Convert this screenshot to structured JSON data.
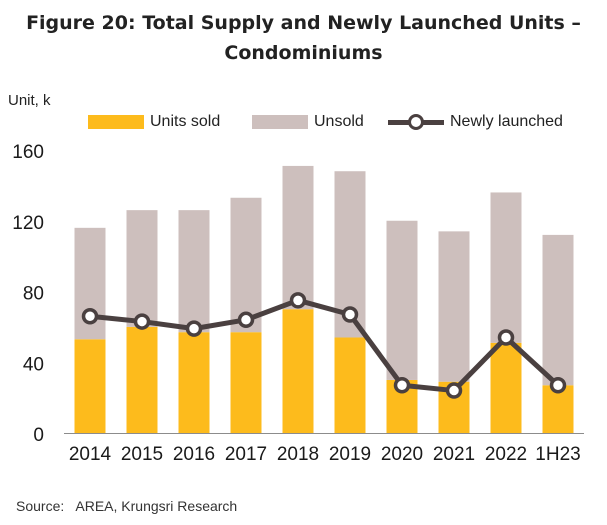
{
  "title_line1": "Figure 20: Total Supply and Newly Launched Units –",
  "title_line2": "Condominiums",
  "unit_label": "Unit, k",
  "legend": {
    "units_sold": "Units sold",
    "unsold": "Unsold",
    "newly_launched": "Newly launched"
  },
  "source_label": "Source:",
  "source_text": "AREA, Krungsri Research",
  "colors": {
    "units_sold": "#fdbb1c",
    "unsold": "#cdbfbd",
    "newly_launched": "#4a4040"
  },
  "chart_data": {
    "type": "bar",
    "stacked": true,
    "categories": [
      "2014",
      "2015",
      "2016",
      "2017",
      "2018",
      "2019",
      "2020",
      "2021",
      "2022",
      "1H23"
    ],
    "series": [
      {
        "name": "Units sold",
        "type": "bar",
        "values": [
          53,
          60,
          57,
          57,
          70,
          54,
          30,
          29,
          51,
          27
        ]
      },
      {
        "name": "Unsold",
        "type": "bar",
        "values": [
          63,
          66,
          69,
          76,
          81,
          94,
          90,
          85,
          85,
          85
        ]
      },
      {
        "name": "Newly launched",
        "type": "line",
        "values": [
          66,
          63,
          59,
          64,
          75,
          67,
          27,
          24,
          54,
          27
        ]
      }
    ],
    "ylim": [
      0,
      160
    ],
    "yticks": [
      0,
      40,
      80,
      120,
      160
    ],
    "ylabel": "Unit, k",
    "grid": false,
    "legend_position": "top"
  }
}
